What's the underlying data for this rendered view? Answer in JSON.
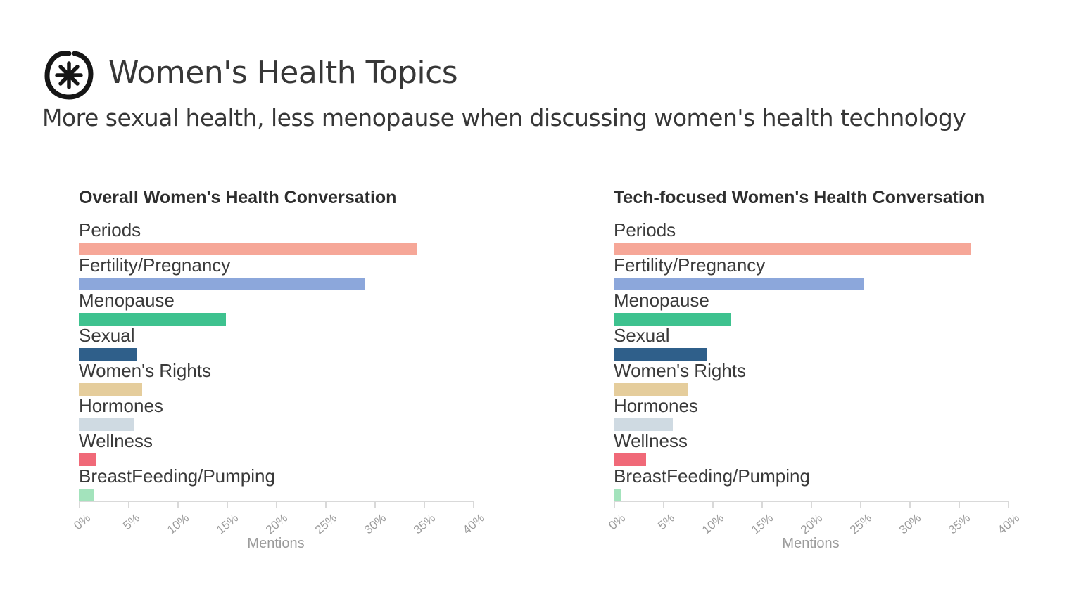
{
  "header": {
    "title": "Women's Health Topics",
    "subtitle": "More sexual health, less menopause when discussing women's health technology",
    "logo": "asterisk-in-circle"
  },
  "axis": {
    "label": "Mentions",
    "tick_labels": [
      "0%",
      "5%",
      "10%",
      "15%",
      "20%",
      "25%",
      "30%",
      "35%",
      "40%"
    ],
    "min_pct": 0,
    "max_pct": 40,
    "step_pct": 5
  },
  "colors": {
    "bars": [
      "#F6A798",
      "#8CA7DB",
      "#3EC28F",
      "#2F5F8A",
      "#E5CD9C",
      "#CFDAE2",
      "#F06978",
      "#A3E3BC"
    ],
    "text_dark": "#3A3A3A",
    "text_muted": "#9B9B9B",
    "axis_line": "#D9D9D9"
  },
  "chart_data": [
    {
      "type": "bar",
      "orientation": "horizontal",
      "title": "Overall Women's Health Conversation",
      "xlabel": "Mentions",
      "xlim": [
        0,
        40
      ],
      "unit": "%",
      "categories": [
        "Periods",
        "Fertility/Pregnancy",
        "Menopause",
        "Sexual",
        "Women's Rights",
        "Hormones",
        "Wellness",
        "BreastFeeding/Pumping"
      ],
      "values": [
        34.3,
        29.1,
        14.9,
        5.9,
        6.4,
        5.6,
        1.8,
        1.6
      ]
    },
    {
      "type": "bar",
      "orientation": "horizontal",
      "title": "Tech-focused Women's Health Conversation",
      "xlabel": "Mentions",
      "xlim": [
        0,
        40
      ],
      "unit": "%",
      "categories": [
        "Periods",
        "Fertility/Pregnancy",
        "Menopause",
        "Sexual",
        "Women's Rights",
        "Hormones",
        "Wellness",
        "BreastFeeding/Pumping"
      ],
      "values": [
        36.3,
        25.4,
        11.9,
        9.4,
        7.5,
        6.0,
        3.3,
        0.8
      ]
    }
  ]
}
